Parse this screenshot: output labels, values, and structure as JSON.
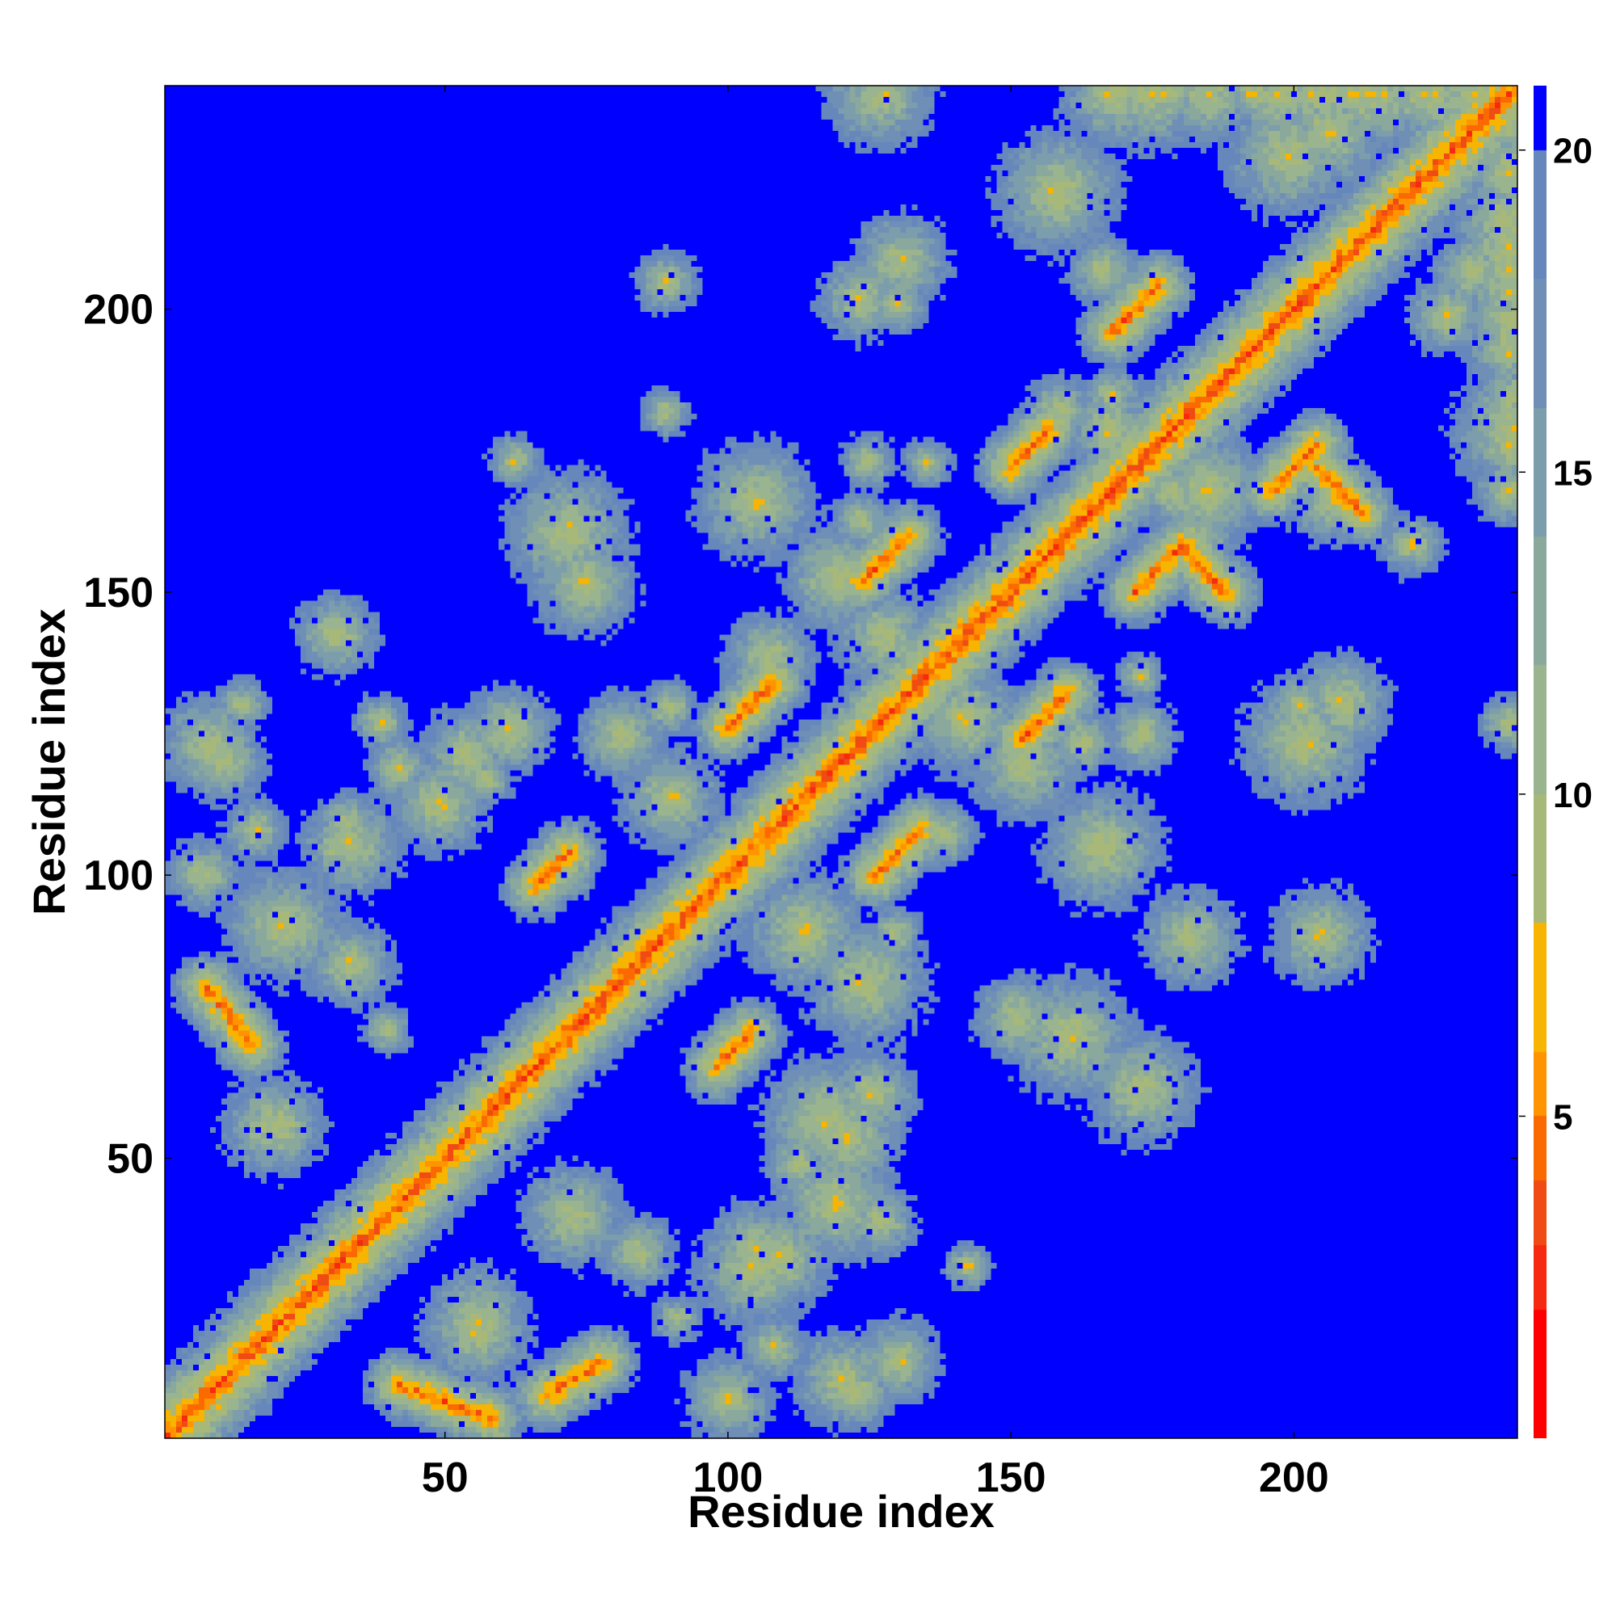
{
  "chart_data": {
    "type": "heatmap",
    "title": "",
    "xlabel": "Residue index",
    "ylabel": "Residue index",
    "n_residues": 240,
    "xlim": [
      0.5,
      239.5
    ],
    "ylim": [
      0.5,
      239.5
    ],
    "x_ticks": [
      50,
      100,
      150,
      200
    ],
    "y_ticks": [
      50,
      100,
      150,
      200
    ],
    "x_tick_labels": [
      "50",
      "100",
      "150",
      "200"
    ],
    "y_tick_labels": [
      "50",
      "100",
      "150",
      "200"
    ],
    "colorbar": {
      "range": [
        0,
        21
      ],
      "ticks": [
        5,
        10,
        15,
        20
      ],
      "tick_labels": [
        "5",
        "10",
        "15",
        "20"
      ],
      "colors": [
        "#ff0000",
        "#f52a10",
        "#f04b14",
        "#fb6a00",
        "#ff9400",
        "#f7b400",
        "#a8b878",
        "#99b48e",
        "#8aa89c",
        "#7c9dab",
        "#6f8fb6",
        "#6587bb",
        "#0000ff"
      ],
      "boundaries": [
        0,
        2,
        3,
        4,
        5,
        6,
        8,
        10,
        12,
        14,
        16,
        18,
        20,
        21
      ]
    },
    "contact_features": [
      {
        "kind": "diagonal",
        "from": 1,
        "to": 239
      },
      {
        "kind": "parallel_band",
        "x_start": 66,
        "y_start": 98,
        "x_end": 72,
        "y_end": 104
      },
      {
        "kind": "parallel_band",
        "x_start": 98,
        "y_start": 66,
        "x_end": 104,
        "y_end": 72
      },
      {
        "kind": "parallel_band",
        "x_start": 100,
        "y_start": 126,
        "x_end": 108,
        "y_end": 134
      },
      {
        "kind": "parallel_band",
        "x_start": 126,
        "y_start": 100,
        "x_end": 134,
        "y_end": 108
      },
      {
        "kind": "parallel_band",
        "x_start": 124,
        "y_start": 152,
        "x_end": 132,
        "y_end": 160
      },
      {
        "kind": "parallel_band",
        "x_start": 152,
        "y_start": 124,
        "x_end": 160,
        "y_end": 132
      },
      {
        "kind": "parallel_band",
        "x_start": 150,
        "y_start": 172,
        "x_end": 157,
        "y_end": 179
      },
      {
        "kind": "parallel_band",
        "x_start": 172,
        "y_start": 150,
        "x_end": 179,
        "y_end": 157
      },
      {
        "kind": "parallel_band",
        "x_start": 168,
        "y_start": 196,
        "x_end": 176,
        "y_end": 204
      },
      {
        "kind": "parallel_band",
        "x_start": 196,
        "y_start": 168,
        "x_end": 204,
        "y_end": 176
      },
      {
        "kind": "antiparallel_band",
        "x_start": 8,
        "y_start": 80,
        "x_end": 16,
        "y_end": 70
      },
      {
        "kind": "antiparallel_band",
        "x_start": 42,
        "y_start": 10,
        "x_end": 58,
        "y_end": 4
      },
      {
        "kind": "antiparallel_band",
        "x_start": 68,
        "y_start": 8,
        "x_end": 78,
        "y_end": 14
      },
      {
        "kind": "antiparallel_band",
        "x_start": 180,
        "y_start": 158,
        "x_end": 188,
        "y_end": 150
      },
      {
        "kind": "antiparallel_band",
        "x_start": 204,
        "y_start": 172,
        "x_end": 212,
        "y_end": 164
      }
    ]
  }
}
